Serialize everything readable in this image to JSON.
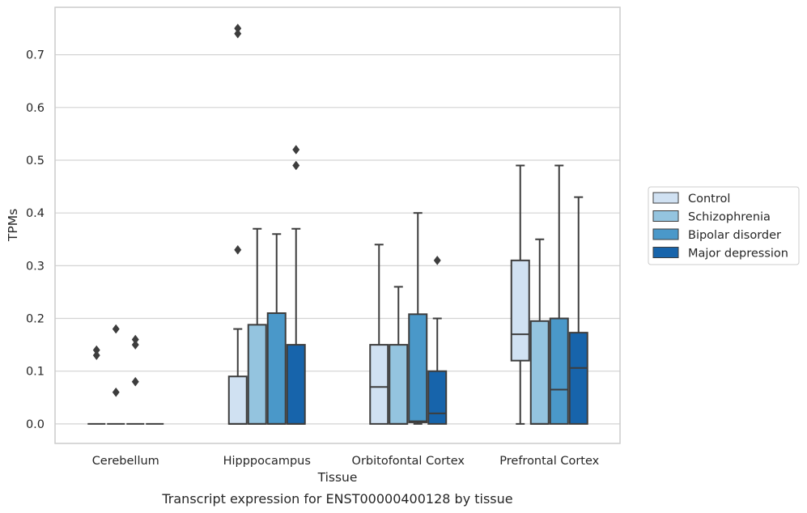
{
  "chart_data": {
    "type": "box",
    "xlabel": "Tissue",
    "ylabel": "TPMs",
    "caption": "Transcript expression for ENST00000400128 by tissue",
    "ylim": [
      -0.037,
      0.79
    ],
    "yticks": [
      0.0,
      0.1,
      0.2,
      0.3,
      0.4,
      0.5,
      0.6,
      0.7
    ],
    "ytick_labels": [
      "0.0",
      "0.1",
      "0.2",
      "0.3",
      "0.4",
      "0.5",
      "0.6",
      "0.7"
    ],
    "grid": true,
    "legend_position": "right",
    "categories": [
      "Cerebellum",
      "Hipppocampus",
      "Orbitofontal Cortex",
      "Prefrontal Cortex"
    ],
    "series": [
      {
        "name": "Control",
        "color": "#d0e1f2",
        "boxes": [
          {
            "q1": 0.0,
            "median": 0.0,
            "q3": 0.0,
            "whisker_low": 0.0,
            "whisker_high": 0.0,
            "outliers": [
              0.13,
              0.14
            ]
          },
          {
            "q1": 0.0,
            "median": 0.0,
            "q3": 0.09,
            "whisker_low": 0.0,
            "whisker_high": 0.18,
            "outliers": [
              0.33,
              0.74,
              0.75
            ]
          },
          {
            "q1": 0.0,
            "median": 0.07,
            "q3": 0.15,
            "whisker_low": 0.0,
            "whisker_high": 0.34,
            "outliers": []
          },
          {
            "q1": 0.12,
            "median": 0.17,
            "q3": 0.31,
            "whisker_low": 0.0,
            "whisker_high": 0.49,
            "outliers": []
          }
        ]
      },
      {
        "name": "Schizophrenia",
        "color": "#94c4df",
        "boxes": [
          {
            "q1": 0.0,
            "median": 0.0,
            "q3": 0.0,
            "whisker_low": 0.0,
            "whisker_high": 0.0,
            "outliers": [
              0.06,
              0.18
            ]
          },
          {
            "q1": 0.0,
            "median": 0.0,
            "q3": 0.188,
            "whisker_low": 0.0,
            "whisker_high": 0.37,
            "outliers": []
          },
          {
            "q1": 0.0,
            "median": 0.0,
            "q3": 0.15,
            "whisker_low": 0.0,
            "whisker_high": 0.26,
            "outliers": []
          },
          {
            "q1": 0.0,
            "median": 0.0,
            "q3": 0.195,
            "whisker_low": 0.0,
            "whisker_high": 0.35,
            "outliers": []
          }
        ]
      },
      {
        "name": "Bipolar disorder",
        "color": "#4a98c9",
        "boxes": [
          {
            "q1": 0.0,
            "median": 0.0,
            "q3": 0.0,
            "whisker_low": 0.0,
            "whisker_high": 0.0,
            "outliers": [
              0.08,
              0.15,
              0.16
            ]
          },
          {
            "q1": 0.0,
            "median": 0.0,
            "q3": 0.21,
            "whisker_low": 0.0,
            "whisker_high": 0.36,
            "outliers": []
          },
          {
            "q1": 0.003,
            "median": 0.005,
            "q3": 0.208,
            "whisker_low": 0.0,
            "whisker_high": 0.4,
            "outliers": []
          },
          {
            "q1": 0.0,
            "median": 0.065,
            "q3": 0.2,
            "whisker_low": 0.0,
            "whisker_high": 0.49,
            "outliers": []
          }
        ]
      },
      {
        "name": "Major depression",
        "color": "#1764ab",
        "boxes": [
          {
            "q1": 0.0,
            "median": 0.0,
            "q3": 0.0,
            "whisker_low": 0.0,
            "whisker_high": 0.0,
            "outliers": []
          },
          {
            "q1": 0.0,
            "median": 0.0,
            "q3": 0.15,
            "whisker_low": 0.0,
            "whisker_high": 0.37,
            "outliers": [
              0.49,
              0.52
            ]
          },
          {
            "q1": 0.0,
            "median": 0.02,
            "q3": 0.1,
            "whisker_low": 0.0,
            "whisker_high": 0.2,
            "outliers": [
              0.31
            ]
          },
          {
            "q1": 0.0,
            "median": 0.106,
            "q3": 0.173,
            "whisker_low": 0.0,
            "whisker_high": 0.43,
            "outliers": []
          }
        ]
      }
    ]
  }
}
